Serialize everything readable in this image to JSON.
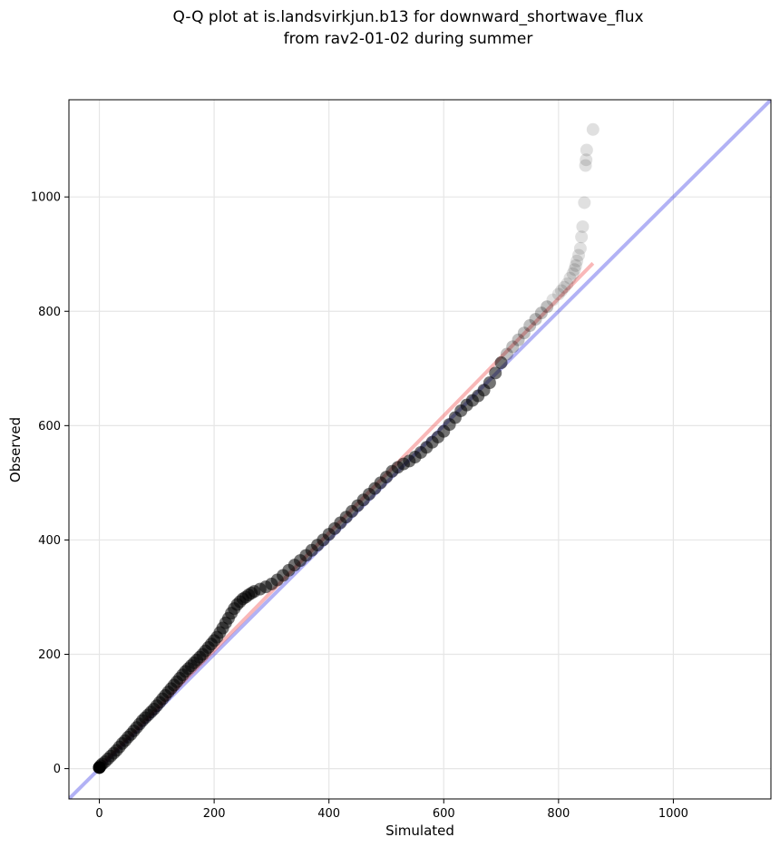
{
  "chart_data": {
    "type": "scatter",
    "title_lines": [
      "Q-Q plot at is.landsvirkjun.b13 for downward_shortwave_flux",
      "from rav2-01-02 during summer"
    ],
    "xlabel": "Simulated",
    "ylabel": "Observed",
    "xlim": [
      -53,
      1170
    ],
    "ylim": [
      -53,
      1170
    ],
    "xticks": [
      0,
      200,
      400,
      600,
      800,
      1000
    ],
    "yticks": [
      0,
      200,
      400,
      600,
      800,
      1000
    ],
    "grid": true,
    "colors": {
      "points": "#000000",
      "identity_line": "#0000dd",
      "fit_line": "#ee3333",
      "grid": "#e6e6e6"
    },
    "identity_line": {
      "x": [
        -53,
        1170
      ],
      "y": [
        -53,
        1170
      ]
    },
    "fit_line": {
      "x": [
        0,
        860
      ],
      "y": [
        2,
        884
      ]
    },
    "points": [
      [
        0,
        2
      ],
      [
        2,
        5
      ],
      [
        5,
        8
      ],
      [
        10,
        12
      ],
      [
        15,
        17
      ],
      [
        20,
        22
      ],
      [
        25,
        27
      ],
      [
        30,
        32
      ],
      [
        35,
        38
      ],
      [
        40,
        44
      ],
      [
        45,
        49
      ],
      [
        50,
        55
      ],
      [
        55,
        60
      ],
      [
        60,
        66
      ],
      [
        65,
        72
      ],
      [
        70,
        78
      ],
      [
        75,
        84
      ],
      [
        80,
        89
      ],
      [
        85,
        94
      ],
      [
        90,
        99
      ],
      [
        95,
        104
      ],
      [
        100,
        110
      ],
      [
        105,
        116
      ],
      [
        110,
        122
      ],
      [
        115,
        128
      ],
      [
        120,
        134
      ],
      [
        125,
        140
      ],
      [
        130,
        146
      ],
      [
        135,
        152
      ],
      [
        140,
        158
      ],
      [
        145,
        164
      ],
      [
        150,
        170
      ],
      [
        155,
        175
      ],
      [
        160,
        180
      ],
      [
        165,
        185
      ],
      [
        170,
        190
      ],
      [
        175,
        195
      ],
      [
        180,
        200
      ],
      [
        185,
        206
      ],
      [
        190,
        212
      ],
      [
        195,
        218
      ],
      [
        200,
        224
      ],
      [
        205,
        230
      ],
      [
        210,
        238
      ],
      [
        215,
        246
      ],
      [
        220,
        255
      ],
      [
        225,
        263
      ],
      [
        230,
        272
      ],
      [
        235,
        280
      ],
      [
        240,
        287
      ],
      [
        245,
        292
      ],
      [
        250,
        297
      ],
      [
        255,
        300
      ],
      [
        260,
        304
      ],
      [
        265,
        307
      ],
      [
        270,
        310
      ],
      [
        280,
        314
      ],
      [
        290,
        318
      ],
      [
        300,
        323
      ],
      [
        310,
        330
      ],
      [
        320,
        338
      ],
      [
        330,
        347
      ],
      [
        340,
        356
      ],
      [
        350,
        364
      ],
      [
        360,
        373
      ],
      [
        370,
        382
      ],
      [
        380,
        391
      ],
      [
        390,
        400
      ],
      [
        400,
        410
      ],
      [
        410,
        420
      ],
      [
        420,
        430
      ],
      [
        430,
        440
      ],
      [
        440,
        450
      ],
      [
        450,
        460
      ],
      [
        460,
        470
      ],
      [
        470,
        480
      ],
      [
        480,
        490
      ],
      [
        490,
        500
      ],
      [
        500,
        510
      ],
      [
        510,
        520
      ],
      [
        520,
        527
      ],
      [
        530,
        533
      ],
      [
        540,
        538
      ],
      [
        550,
        545
      ],
      [
        560,
        553
      ],
      [
        570,
        562
      ],
      [
        580,
        571
      ],
      [
        590,
        580
      ],
      [
        600,
        590
      ],
      [
        610,
        602
      ],
      [
        620,
        614
      ],
      [
        630,
        626
      ],
      [
        640,
        636
      ],
      [
        650,
        644
      ],
      [
        660,
        652
      ],
      [
        670,
        662
      ],
      [
        680,
        675
      ],
      [
        690,
        692
      ],
      [
        700,
        710
      ],
      [
        710,
        725
      ],
      [
        720,
        738
      ],
      [
        730,
        750
      ],
      [
        740,
        762
      ],
      [
        750,
        775
      ],
      [
        760,
        786
      ],
      [
        770,
        797
      ],
      [
        780,
        808
      ],
      [
        790,
        820
      ],
      [
        800,
        830
      ],
      [
        805,
        836
      ],
      [
        810,
        842
      ],
      [
        815,
        848
      ],
      [
        820,
        858
      ],
      [
        825,
        866
      ],
      [
        828,
        873
      ],
      [
        830,
        880
      ],
      [
        832,
        888
      ],
      [
        835,
        898
      ],
      [
        838,
        910
      ],
      [
        840,
        930
      ],
      [
        842,
        948
      ],
      [
        845,
        990
      ],
      [
        847,
        1055
      ],
      [
        848,
        1065
      ],
      [
        849,
        1082
      ],
      [
        860,
        1118
      ]
    ]
  }
}
